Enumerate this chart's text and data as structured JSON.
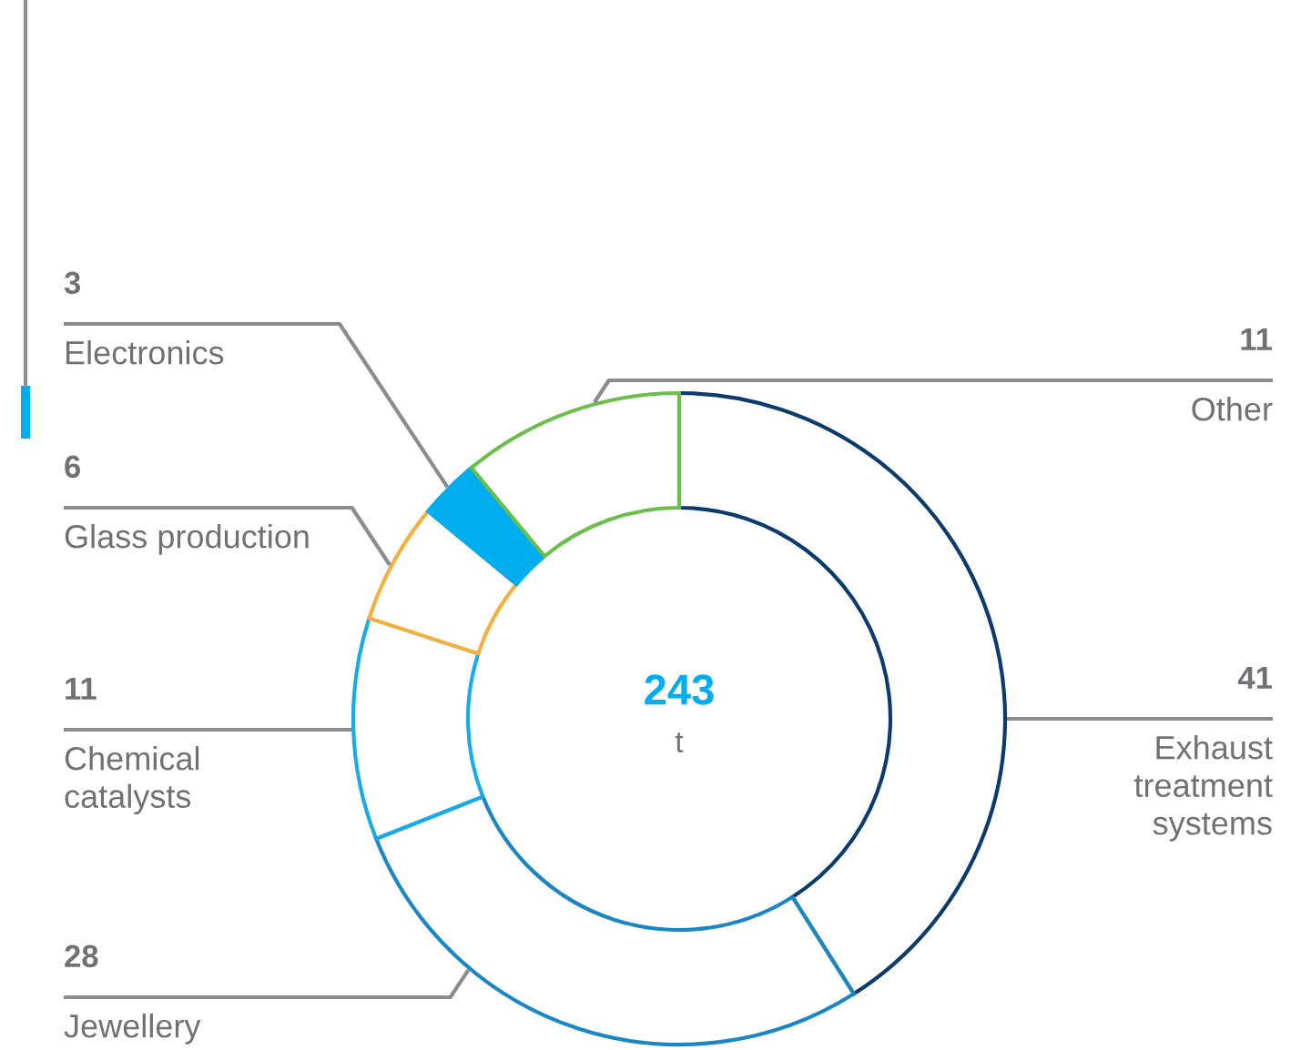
{
  "chart_data": {
    "type": "donut",
    "categories": [
      "Exhaust\ntreatment\nsystems",
      "Jewellery",
      "Chemical\ncatalysts",
      "Glass production",
      "Electronics",
      "Other"
    ],
    "values": [
      41,
      28,
      11,
      6,
      3,
      11
    ],
    "colors": [
      "#0b3a6c",
      "#1a86c2",
      "#19abe8",
      "#f6ae3c",
      "#00aeef",
      "#6abf4b"
    ],
    "data_labels": true,
    "annotations": [
      "243",
      "t"
    ]
  }
}
